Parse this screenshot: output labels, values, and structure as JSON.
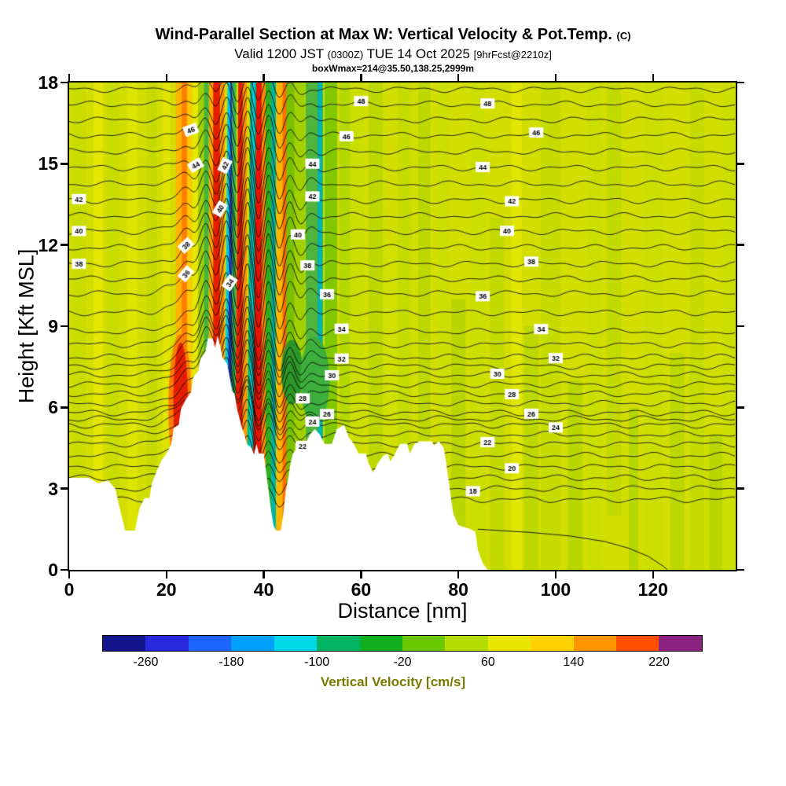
{
  "header": {
    "title": "Wind-Parallel Section at Max W: Vertical Velocity & Pot.Temp.",
    "title_suffix": "(C)",
    "valid_main": "Valid 1200 JST",
    "valid_zulu": "(0300Z)",
    "valid_date": "TUE 14 Oct 2025",
    "valid_fcst": "[9hrFcst@2210z]",
    "annotation": "boxWmax=214@35.50,138.25,2999m"
  },
  "chart_data": {
    "type": "heatmap",
    "title": "Wind-Parallel Section at Max W: Vertical Velocity & Pot.Temp. (C)",
    "subtitle": "Valid 1200 JST (0300Z) TUE 14 Oct 2025 [9hrFcst@2210z]",
    "annotation": "boxWmax=214@35.50,138.25,2999m",
    "xlabel": "Distance [nm]",
    "ylabel": "Height [Kft MSL]",
    "xlim": [
      0,
      137
    ],
    "ylim": [
      0,
      18
    ],
    "xticks": [
      0,
      20,
      40,
      60,
      80,
      100,
      120
    ],
    "yticks": [
      0,
      3,
      6,
      9,
      12,
      15,
      18
    ],
    "fill_field": "vertical velocity filled contours, cm/s",
    "line_field": "potential temperature black contours, C, labeled every 2 from 18 to 48",
    "background": {
      "base_color": "#d3de00",
      "streaks": [
        {
          "x": 2,
          "w": 3,
          "y0": 0,
          "y1": 18,
          "c": "#c8dc00"
        },
        {
          "x": 6,
          "w": 2,
          "y0": 3,
          "y1": 18,
          "c": "#e2e600"
        },
        {
          "x": 9,
          "w": 2.5,
          "y0": 2,
          "y1": 18,
          "c": "#c8dc00"
        },
        {
          "x": 13,
          "w": 2,
          "y0": 1.5,
          "y1": 18,
          "c": "#dce400"
        },
        {
          "x": 17,
          "w": 2,
          "y0": 3,
          "y1": 18,
          "c": "#c4da00"
        },
        {
          "x": 20,
          "w": 1.5,
          "y0": 4,
          "y1": 18,
          "c": "#e0e400"
        },
        {
          "x": 59,
          "w": 3,
          "y0": 4,
          "y1": 18,
          "c": "#cade00"
        },
        {
          "x": 63,
          "w": 3,
          "y0": 0,
          "y1": 18,
          "c": "#bcd800"
        },
        {
          "x": 66,
          "w": 2,
          "y0": 4,
          "y1": 12,
          "c": "#d0e000"
        },
        {
          "x": 69,
          "w": 3,
          "y0": 4,
          "y1": 18,
          "c": "#c6dc00"
        },
        {
          "x": 73,
          "w": 2.5,
          "y0": 4.8,
          "y1": 18,
          "c": "#bcd800"
        },
        {
          "x": 77,
          "w": 2,
          "y0": 1.5,
          "y1": 18,
          "c": "#cade00"
        },
        {
          "x": 80,
          "w": 3,
          "y0": 1.5,
          "y1": 10,
          "c": "#b8d600"
        },
        {
          "x": 84,
          "w": 3,
          "y0": 0,
          "y1": 18,
          "c": "#cade00"
        },
        {
          "x": 88,
          "w": 3,
          "y0": 0,
          "y1": 13,
          "c": "#c2da00"
        },
        {
          "x": 92,
          "w": 2,
          "y0": 0,
          "y1": 18,
          "c": "#e0e600"
        },
        {
          "x": 95,
          "w": 3,
          "y0": 0,
          "y1": 9,
          "c": "#bcd800"
        },
        {
          "x": 99,
          "w": 4,
          "y0": 0,
          "y1": 18,
          "c": "#c6dc00"
        },
        {
          "x": 104,
          "w": 3,
          "y0": 0,
          "y1": 7,
          "c": "#b8d600"
        },
        {
          "x": 108,
          "w": 3,
          "y0": 0,
          "y1": 18,
          "c": "#cade00"
        },
        {
          "x": 112,
          "w": 3,
          "y0": 2,
          "y1": 18,
          "c": "#c2da00"
        },
        {
          "x": 116,
          "w": 2,
          "y0": 0,
          "y1": 6,
          "c": "#b8d600"
        },
        {
          "x": 120,
          "w": 4,
          "y0": 0,
          "y1": 18,
          "c": "#cade00"
        },
        {
          "x": 125,
          "w": 3,
          "y0": 0,
          "y1": 8,
          "c": "#bcd800"
        },
        {
          "x": 129,
          "w": 3,
          "y0": 0,
          "y1": 18,
          "c": "#c6dc00"
        },
        {
          "x": 133,
          "w": 3,
          "y0": 0,
          "y1": 5,
          "c": "#b8d600"
        },
        {
          "x": 135.5,
          "w": 2.5,
          "y0": 0,
          "y1": 18,
          "c": "#cade00"
        }
      ]
    },
    "wave_bands": [
      {
        "x": 22.6,
        "w": 1.4,
        "c": "#ffb400"
      },
      {
        "x": 23.7,
        "w": 1.1,
        "c": "#ff7d00"
      },
      {
        "x": 24.7,
        "w": 0.9,
        "c": "#ffc800"
      },
      {
        "x": 25.9,
        "w": 1.1,
        "c": "#e8e600"
      },
      {
        "x": 27.1,
        "w": 1.2,
        "c": "#a0d000"
      },
      {
        "x": 28.2,
        "w": 1.0,
        "c": "#46b43c"
      },
      {
        "x": 29.2,
        "w": 0.9,
        "c": "#ffaa00"
      },
      {
        "x": 30.3,
        "w": 1.4,
        "c": "#e61e00"
      },
      {
        "x": 31.5,
        "w": 0.8,
        "c": "#ff8c00"
      },
      {
        "x": 32.6,
        "w": 1.7,
        "c": "#00c8e6",
        "tilt": 0.8
      },
      {
        "x": 32.7,
        "w": 0.7,
        "c": "#2341d2",
        "tilt": 0.8
      },
      {
        "x": 33.9,
        "w": 0.9,
        "c": "#3cb450"
      },
      {
        "x": 34.8,
        "w": 1.7,
        "c": "#e61e00",
        "tilt": 0.8
      },
      {
        "x": 36.1,
        "w": 0.9,
        "c": "#ff9600"
      },
      {
        "x": 37.1,
        "w": 1.4,
        "c": "#00b48c",
        "tilt": 0.8
      },
      {
        "x": 37.15,
        "w": 0.55,
        "c": "#00d2dc",
        "tilt": 0.8
      },
      {
        "x": 38.6,
        "w": 1.9,
        "c": "#e61400",
        "tilt": 0.8
      },
      {
        "x": 40.0,
        "w": 0.9,
        "c": "#ff8c00"
      },
      {
        "x": 41.0,
        "w": 1.2,
        "c": "#2faf1e"
      },
      {
        "x": 42.0,
        "w": 1.0,
        "c": "#00b4a0"
      },
      {
        "x": 43.2,
        "w": 1.2,
        "c": "#ffb400"
      },
      {
        "x": 44.3,
        "w": 0.9,
        "c": "#ff6e00"
      },
      {
        "x": 45.5,
        "w": 1.7,
        "c": "#78c000"
      },
      {
        "x": 47.4,
        "w": 2.2,
        "c": "#a0d000"
      },
      {
        "x": 49.9,
        "w": 2.6,
        "c": "#50b43c"
      },
      {
        "x": 51.6,
        "w": 1.1,
        "c": "#00b4aa"
      },
      {
        "x": 53.8,
        "w": 2.6,
        "c": "#82c800"
      },
      {
        "x": 56.6,
        "w": 2.2,
        "c": "#b4d800"
      }
    ],
    "blobs": [
      {
        "cx": 22.8,
        "cy": 6.0,
        "rx": 2.4,
        "ry": 2.7,
        "c": "#ff7d00"
      },
      {
        "cx": 22.9,
        "cy": 6.2,
        "rx": 1.5,
        "ry": 2.2,
        "c": "#e61e00"
      },
      {
        "cx": 45.8,
        "cy": 7.3,
        "rx": 2.2,
        "ry": 1.2,
        "c": "#2d9628"
      },
      {
        "cx": 50.5,
        "cy": 7.0,
        "rx": 3.0,
        "ry": 1.6,
        "c": "#3caf3c"
      }
    ],
    "terrain_profile": [
      [
        0,
        3.4
      ],
      [
        4,
        3.4
      ],
      [
        6,
        3.2
      ],
      [
        8,
        3.3
      ],
      [
        9.5,
        3.0
      ],
      [
        10.5,
        2.2
      ],
      [
        11.5,
        1.45
      ],
      [
        13.5,
        1.45
      ],
      [
        14.5,
        2.3
      ],
      [
        15.5,
        2.65
      ],
      [
        16.5,
        2.65
      ],
      [
        17,
        3.2
      ],
      [
        18,
        3.65
      ],
      [
        19,
        4.05
      ],
      [
        20,
        4.3
      ],
      [
        21,
        4.65
      ],
      [
        21.5,
        5.25
      ],
      [
        22.5,
        5.35
      ],
      [
        23,
        5.95
      ],
      [
        24,
        6.3
      ],
      [
        25,
        6.55
      ],
      [
        25.5,
        7.1
      ],
      [
        26.5,
        7.35
      ],
      [
        27,
        7.8
      ],
      [
        28,
        8.05
      ],
      [
        28.5,
        8.55
      ],
      [
        29.5,
        8.55
      ],
      [
        30,
        8.2
      ],
      [
        30.5,
        8.65
      ],
      [
        31,
        8.3
      ],
      [
        31.5,
        7.85
      ],
      [
        32.5,
        7.6
      ],
      [
        33,
        7.1
      ],
      [
        33.5,
        6.6
      ],
      [
        34,
        6.5
      ],
      [
        34.5,
        5.95
      ],
      [
        35,
        5.6
      ],
      [
        35.5,
        5.25
      ],
      [
        36,
        5.0
      ],
      [
        36.5,
        4.65
      ],
      [
        37.5,
        4.5
      ],
      [
        38,
        4.25
      ],
      [
        38.5,
        4.65
      ],
      [
        39,
        4.3
      ],
      [
        40,
        4.3
      ],
      [
        40.5,
        3.6
      ],
      [
        41,
        2.9
      ],
      [
        41.5,
        2.2
      ],
      [
        42,
        1.65
      ],
      [
        42.5,
        1.45
      ],
      [
        43.5,
        1.45
      ],
      [
        44,
        2.05
      ],
      [
        44.5,
        2.9
      ],
      [
        45,
        3.35
      ],
      [
        45.5,
        3.95
      ],
      [
        46,
        4.3
      ],
      [
        47,
        4.55
      ],
      [
        48.5,
        4.65
      ],
      [
        49.5,
        5.0
      ],
      [
        50.5,
        5.2
      ],
      [
        51.5,
        5.0
      ],
      [
        52.5,
        4.65
      ],
      [
        54,
        4.65
      ],
      [
        55,
        5.2
      ],
      [
        56.5,
        5.35
      ],
      [
        57.5,
        4.9
      ],
      [
        58.5,
        4.65
      ],
      [
        59.5,
        4.3
      ],
      [
        61,
        4.3
      ],
      [
        61.5,
        3.95
      ],
      [
        62.5,
        3.6
      ],
      [
        63.5,
        3.95
      ],
      [
        64.5,
        4.2
      ],
      [
        65.5,
        4.3
      ],
      [
        66,
        4.0
      ],
      [
        67,
        4.3
      ],
      [
        68,
        4.65
      ],
      [
        69.5,
        4.65
      ],
      [
        70,
        4.3
      ],
      [
        71,
        4.65
      ],
      [
        72,
        4.75
      ],
      [
        74.5,
        4.75
      ],
      [
        75,
        4.6
      ],
      [
        76,
        4.75
      ],
      [
        77,
        4.5
      ],
      [
        77.5,
        3.95
      ],
      [
        78,
        3.3
      ],
      [
        78.5,
        2.6
      ],
      [
        79,
        2.05
      ],
      [
        80,
        1.65
      ],
      [
        82.5,
        1.5
      ],
      [
        83.5,
        1.4
      ],
      [
        84,
        0.75
      ],
      [
        85,
        0.25
      ],
      [
        86,
        0.0
      ]
    ],
    "theta_levels": [
      18,
      20,
      22,
      24,
      26,
      28,
      30,
      32,
      34,
      36,
      38,
      40,
      42,
      44,
      46,
      48
    ],
    "theta_base_heights": {
      "18": 3.0,
      "20": 3.8,
      "22": 4.65,
      "24": 5.35,
      "26": 5.8,
      "28": 6.5,
      "30": 7.2,
      "32": 7.85,
      "34": 8.8,
      "36": 10.2,
      "38": 11.3,
      "40": 12.5,
      "42": 13.65,
      "44": 14.85,
      "46": 16.05,
      "48": 17.2
    },
    "wave_params": {
      "hump_amp": 1.6,
      "hump_h0": 7.5,
      "hump_hsig": 7,
      "hump_x0": 30.5,
      "hump_xsig": 7.5,
      "osc_amp": 1.1,
      "osc_h0": 11,
      "osc_hsig": 8,
      "osc_x0": 37,
      "osc_xsig": 9,
      "osc_wl": 4.4,
      "osc_phase": 31.2
    },
    "contour_labels": [
      {
        "t": 18,
        "x": 83
      },
      {
        "t": 20,
        "x": 91
      },
      {
        "t": 22,
        "x": 48
      },
      {
        "t": 22,
        "x": 86
      },
      {
        "t": 24,
        "x": 50
      },
      {
        "t": 24,
        "x": 100
      },
      {
        "t": 26,
        "x": 53
      },
      {
        "t": 26,
        "x": 95
      },
      {
        "t": 28,
        "x": 48
      },
      {
        "t": 28,
        "x": 91
      },
      {
        "t": 30,
        "x": 54
      },
      {
        "t": 30,
        "x": 88
      },
      {
        "t": 32,
        "x": 56
      },
      {
        "t": 32,
        "x": 100
      },
      {
        "t": 34,
        "x": 33,
        "rot": -55
      },
      {
        "t": 34,
        "x": 56
      },
      {
        "t": 34,
        "x": 97
      },
      {
        "t": 36,
        "x": 24,
        "rot": -50
      },
      {
        "t": 36,
        "x": 53
      },
      {
        "t": 36,
        "x": 85
      },
      {
        "t": 38,
        "x": 2
      },
      {
        "t": 38,
        "x": 24,
        "rot": -45
      },
      {
        "t": 38,
        "x": 49
      },
      {
        "t": 38,
        "x": 95
      },
      {
        "t": 40,
        "x": 2
      },
      {
        "t": 40,
        "x": 31,
        "rot": -60
      },
      {
        "t": 40,
        "x": 47
      },
      {
        "t": 40,
        "x": 90
      },
      {
        "t": 42,
        "x": 2
      },
      {
        "t": 42,
        "x": 32,
        "rot": -65
      },
      {
        "t": 42,
        "x": 50
      },
      {
        "t": 42,
        "x": 91
      },
      {
        "t": 44,
        "x": 26,
        "rot": -30
      },
      {
        "t": 44,
        "x": 50
      },
      {
        "t": 44,
        "x": 85
      },
      {
        "t": 46,
        "x": 25,
        "rot": -20
      },
      {
        "t": 46,
        "x": 57
      },
      {
        "t": 46,
        "x": 96
      },
      {
        "t": 48,
        "x": 60
      },
      {
        "t": 48,
        "x": 86
      }
    ],
    "extra_surface_line": [
      [
        84,
        1.5
      ],
      [
        95,
        1.38
      ],
      [
        103,
        1.25
      ],
      [
        110,
        1.05
      ],
      [
        115,
        0.8
      ],
      [
        119,
        0.5
      ],
      [
        122,
        0.15
      ],
      [
        123,
        0.0
      ]
    ],
    "colorbar": {
      "label": "Vertical Velocity [cm/s]",
      "label_color": "#7a7a00",
      "ticks": [
        -260,
        -180,
        -100,
        -20,
        60,
        140,
        220
      ],
      "vmin": -300,
      "vmax": 260,
      "colors": [
        "#14148c",
        "#2828dc",
        "#1e64ff",
        "#00a0ff",
        "#00d8e8",
        "#00b464",
        "#0faf20",
        "#69c800",
        "#b4dc00",
        "#e6e600",
        "#ffd200",
        "#ff9600",
        "#ff5000",
        "#8c2382"
      ]
    }
  }
}
